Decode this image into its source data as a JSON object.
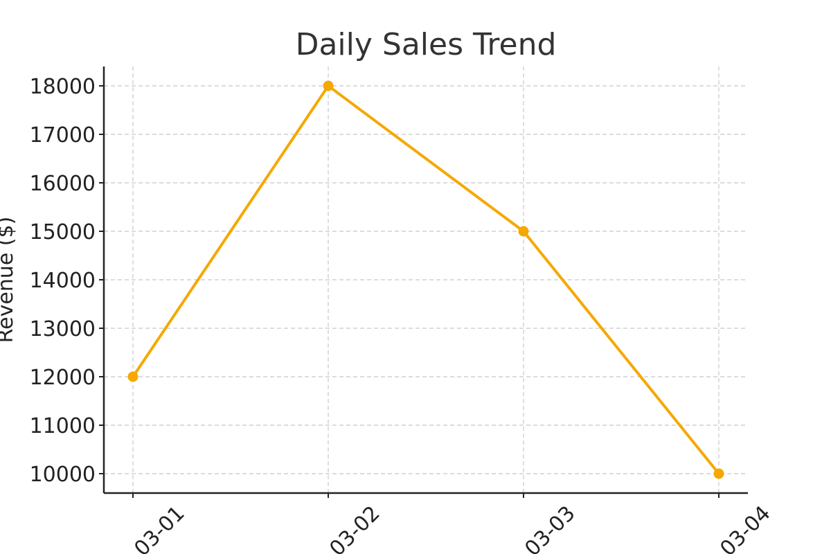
{
  "chart_data": {
    "type": "line",
    "title": "Daily Sales Trend",
    "xlabel": "",
    "ylabel": "Revenue ($)",
    "x": [
      "03-01",
      "03-02",
      "03-03",
      "03-04"
    ],
    "series": [
      {
        "values": [
          12000,
          18000,
          15000,
          10000
        ],
        "color": "#f5a800"
      }
    ],
    "yticks": [
      10000,
      11000,
      12000,
      13000,
      14000,
      15000,
      16000,
      17000,
      18000
    ],
    "ylim": [
      9600,
      18400
    ],
    "grid": true,
    "legend": "none"
  }
}
